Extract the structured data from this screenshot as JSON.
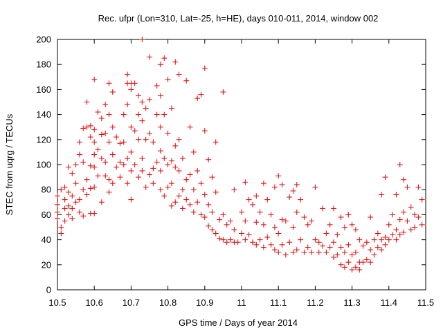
{
  "chart_data": {
    "type": "scatter",
    "title": "Rec. ufpr (Lon=310, Lat=-25, h=HE), days 010-011, 2014, window 002",
    "xlabel": "GPS time / Days of year 2014",
    "ylabel": "STEC from uqrg / TECUs",
    "xlim": [
      10.5,
      11.5
    ],
    "ylim": [
      0,
      200
    ],
    "x_ticks": [
      "10.5",
      "10.6",
      "10.7",
      "10.8",
      "10.9",
      "11",
      "11.1",
      "11.2",
      "11.3",
      "11.4",
      "11.5"
    ],
    "y_ticks": [
      "0",
      "20",
      "40",
      "60",
      "80",
      "100",
      "120",
      "140",
      "160",
      "180",
      "200"
    ],
    "grid": false,
    "legend": "none",
    "marker": "plus",
    "color": "#e00000",
    "points": [
      [
        10.5,
        75
      ],
      [
        10.5,
        68
      ],
      [
        10.5,
        62
      ],
      [
        10.5,
        57
      ],
      [
        10.51,
        80
      ],
      [
        10.51,
        50
      ],
      [
        10.51,
        45
      ],
      [
        10.52,
        82
      ],
      [
        10.52,
        72
      ],
      [
        10.52,
        65
      ],
      [
        10.52,
        55
      ],
      [
        10.53,
        98
      ],
      [
        10.53,
        78
      ],
      [
        10.53,
        67
      ],
      [
        10.53,
        60
      ],
      [
        10.54,
        93
      ],
      [
        10.54,
        75
      ],
      [
        10.54,
        65
      ],
      [
        10.54,
        57
      ],
      [
        10.55,
        100
      ],
      [
        10.55,
        85
      ],
      [
        10.55,
        70
      ],
      [
        10.56,
        118
      ],
      [
        10.56,
        108
      ],
      [
        10.56,
        72
      ],
      [
        10.56,
        62
      ],
      [
        10.57,
        129
      ],
      [
        10.57,
        102
      ],
      [
        10.57,
        80
      ],
      [
        10.57,
        59
      ],
      [
        10.58,
        150
      ],
      [
        10.58,
        130
      ],
      [
        10.58,
        88
      ],
      [
        10.58,
        76
      ],
      [
        10.59,
        131
      ],
      [
        10.59,
        122
      ],
      [
        10.59,
        99
      ],
      [
        10.59,
        81
      ],
      [
        10.59,
        61
      ],
      [
        10.6,
        168
      ],
      [
        10.6,
        128
      ],
      [
        10.6,
        118
      ],
      [
        10.6,
        108
      ],
      [
        10.6,
        98
      ],
      [
        10.6,
        82
      ],
      [
        10.6,
        61
      ],
      [
        10.61,
        142
      ],
      [
        10.61,
        112
      ],
      [
        10.61,
        91
      ],
      [
        10.62,
        137
      ],
      [
        10.62,
        124
      ],
      [
        10.62,
        105
      ],
      [
        10.62,
        70
      ],
      [
        10.63,
        148
      ],
      [
        10.63,
        125
      ],
      [
        10.63,
        102
      ],
      [
        10.63,
        91
      ],
      [
        10.64,
        165
      ],
      [
        10.64,
        140
      ],
      [
        10.64,
        118
      ],
      [
        10.64,
        88
      ],
      [
        10.64,
        78
      ],
      [
        10.65,
        158
      ],
      [
        10.65,
        130
      ],
      [
        10.65,
        108
      ],
      [
        10.65,
        85
      ],
      [
        10.66,
        122
      ],
      [
        10.66,
        98
      ],
      [
        10.67,
        117
      ],
      [
        10.67,
        102
      ],
      [
        10.67,
        90
      ],
      [
        10.68,
        140
      ],
      [
        10.68,
        118
      ],
      [
        10.68,
        100
      ],
      [
        10.69,
        172
      ],
      [
        10.69,
        165
      ],
      [
        10.69,
        148
      ],
      [
        10.69,
        105
      ],
      [
        10.69,
        85
      ],
      [
        10.7,
        165
      ],
      [
        10.7,
        160
      ],
      [
        10.7,
        130
      ],
      [
        10.7,
        110
      ],
      [
        10.7,
        95
      ],
      [
        10.7,
        72
      ],
      [
        10.71,
        165
      ],
      [
        10.71,
        127
      ],
      [
        10.71,
        100
      ],
      [
        10.72,
        155
      ],
      [
        10.72,
        140
      ],
      [
        10.72,
        120
      ],
      [
        10.72,
        90
      ],
      [
        10.73,
        200
      ],
      [
        10.73,
        150
      ],
      [
        10.73,
        135
      ],
      [
        10.73,
        105
      ],
      [
        10.73,
        95
      ],
      [
        10.74,
        145
      ],
      [
        10.74,
        120
      ],
      [
        10.74,
        82
      ],
      [
        10.75,
        186
      ],
      [
        10.75,
        152
      ],
      [
        10.75,
        125
      ],
      [
        10.75,
        92
      ],
      [
        10.76,
        118
      ],
      [
        10.76,
        97
      ],
      [
        10.76,
        85
      ],
      [
        10.77,
        163
      ],
      [
        10.77,
        140
      ],
      [
        10.77,
        102
      ],
      [
        10.78,
        180
      ],
      [
        10.78,
        155
      ],
      [
        10.78,
        130
      ],
      [
        10.78,
        111
      ],
      [
        10.78,
        95
      ],
      [
        10.78,
        80
      ],
      [
        10.79,
        185
      ],
      [
        10.79,
        140
      ],
      [
        10.79,
        105
      ],
      [
        10.79,
        75
      ],
      [
        10.8,
        168
      ],
      [
        10.8,
        125
      ],
      [
        10.8,
        100
      ],
      [
        10.8,
        82
      ],
      [
        10.81,
        145
      ],
      [
        10.81,
        103
      ],
      [
        10.81,
        85
      ],
      [
        10.81,
        67
      ],
      [
        10.82,
        182
      ],
      [
        10.82,
        115
      ],
      [
        10.82,
        98
      ],
      [
        10.82,
        70
      ],
      [
        10.83,
        172
      ],
      [
        10.83,
        120
      ],
      [
        10.83,
        95
      ],
      [
        10.83,
        75
      ],
      [
        10.84,
        105
      ],
      [
        10.84,
        80
      ],
      [
        10.84,
        65
      ],
      [
        10.85,
        167
      ],
      [
        10.85,
        88
      ],
      [
        10.85,
        72
      ],
      [
        10.86,
        130
      ],
      [
        10.86,
        92
      ],
      [
        10.86,
        68
      ],
      [
        10.87,
        110
      ],
      [
        10.87,
        80
      ],
      [
        10.87,
        62
      ],
      [
        10.88,
        153
      ],
      [
        10.88,
        95
      ],
      [
        10.88,
        70
      ],
      [
        10.89,
        156
      ],
      [
        10.89,
        85
      ],
      [
        10.89,
        60
      ],
      [
        10.9,
        177
      ],
      [
        10.9,
        127
      ],
      [
        10.9,
        76
      ],
      [
        10.9,
        58
      ],
      [
        10.91,
        104
      ],
      [
        10.91,
        68
      ],
      [
        10.91,
        51
      ],
      [
        10.92,
        90
      ],
      [
        10.92,
        62
      ],
      [
        10.92,
        48
      ],
      [
        10.93,
        118
      ],
      [
        10.93,
        78
      ],
      [
        10.93,
        45
      ],
      [
        10.94,
        56
      ],
      [
        10.94,
        41
      ],
      [
        10.95,
        158
      ],
      [
        10.95,
        60
      ],
      [
        10.95,
        40
      ],
      [
        10.96,
        52
      ],
      [
        10.96,
        38
      ],
      [
        10.97,
        55
      ],
      [
        10.97,
        40
      ],
      [
        10.98,
        80
      ],
      [
        10.98,
        48
      ],
      [
        10.98,
        38
      ],
      [
        10.99,
        38
      ],
      [
        11.0,
        62
      ],
      [
        11.0,
        45
      ],
      [
        11.01,
        86
      ],
      [
        11.01,
        55
      ],
      [
        11.01,
        40
      ],
      [
        11.02,
        72
      ],
      [
        11.02,
        44
      ],
      [
        11.03,
        68
      ],
      [
        11.03,
        38
      ],
      [
        11.04,
        75
      ],
      [
        11.04,
        54
      ],
      [
        11.04,
        36
      ],
      [
        11.05,
        62
      ],
      [
        11.05,
        40
      ],
      [
        11.06,
        85
      ],
      [
        11.06,
        52
      ],
      [
        11.06,
        34
      ],
      [
        11.07,
        72
      ],
      [
        11.07,
        42
      ],
      [
        11.08,
        60
      ],
      [
        11.08,
        36
      ],
      [
        11.09,
        82
      ],
      [
        11.09,
        50
      ],
      [
        11.09,
        32
      ],
      [
        11.1,
        91
      ],
      [
        11.1,
        45
      ],
      [
        11.1,
        30
      ],
      [
        11.11,
        84
      ],
      [
        11.11,
        56
      ],
      [
        11.11,
        36
      ],
      [
        11.12,
        55
      ],
      [
        11.12,
        28
      ],
      [
        11.13,
        74
      ],
      [
        11.13,
        38
      ],
      [
        11.14,
        79
      ],
      [
        11.14,
        50
      ],
      [
        11.14,
        30
      ],
      [
        11.15,
        84
      ],
      [
        11.15,
        62
      ],
      [
        11.15,
        32
      ],
      [
        11.16,
        72
      ],
      [
        11.16,
        40
      ],
      [
        11.17,
        58
      ],
      [
        11.17,
        30
      ],
      [
        11.18,
        52
      ],
      [
        11.18,
        34
      ],
      [
        11.19,
        55
      ],
      [
        11.19,
        30
      ],
      [
        11.2,
        82
      ],
      [
        11.2,
        40
      ],
      [
        11.21,
        38
      ],
      [
        11.21,
        30
      ],
      [
        11.22,
        65
      ],
      [
        11.22,
        35
      ],
      [
        11.23,
        45
      ],
      [
        11.23,
        30
      ],
      [
        11.24,
        52
      ],
      [
        11.24,
        34
      ],
      [
        11.25,
        65
      ],
      [
        11.25,
        38
      ],
      [
        11.25,
        26
      ],
      [
        11.26,
        44
      ],
      [
        11.26,
        28
      ],
      [
        11.27,
        58
      ],
      [
        11.27,
        34
      ],
      [
        11.27,
        20
      ],
      [
        11.28,
        50
      ],
      [
        11.28,
        30
      ],
      [
        11.28,
        18
      ],
      [
        11.29,
        60
      ],
      [
        11.29,
        36
      ],
      [
        11.29,
        22
      ],
      [
        11.3,
        52
      ],
      [
        11.3,
        28
      ],
      [
        11.3,
        16
      ],
      [
        11.31,
        48
      ],
      [
        11.31,
        30
      ],
      [
        11.31,
        18
      ],
      [
        11.32,
        40
      ],
      [
        11.32,
        22
      ],
      [
        11.32,
        16
      ],
      [
        11.33,
        35
      ],
      [
        11.33,
        22
      ],
      [
        11.34,
        38
      ],
      [
        11.34,
        24
      ],
      [
        11.35,
        58
      ],
      [
        11.35,
        32
      ],
      [
        11.35,
        22
      ],
      [
        11.36,
        40
      ],
      [
        11.36,
        28
      ],
      [
        11.37,
        45
      ],
      [
        11.37,
        34
      ],
      [
        11.38,
        76
      ],
      [
        11.38,
        40
      ],
      [
        11.38,
        32
      ],
      [
        11.39,
        90
      ],
      [
        11.39,
        42
      ],
      [
        11.39,
        36
      ],
      [
        11.4,
        52
      ],
      [
        11.4,
        40
      ],
      [
        11.41,
        60
      ],
      [
        11.41,
        44
      ],
      [
        11.42,
        76
      ],
      [
        11.42,
        48
      ],
      [
        11.42,
        40
      ],
      [
        11.43,
        100
      ],
      [
        11.43,
        56
      ],
      [
        11.43,
        44
      ],
      [
        11.44,
        88
      ],
      [
        11.44,
        62
      ],
      [
        11.44,
        46
      ],
      [
        11.45,
        82
      ],
      [
        11.45,
        55
      ],
      [
        11.46,
        66
      ],
      [
        11.46,
        48
      ],
      [
        11.47,
        60
      ],
      [
        11.47,
        50
      ],
      [
        11.48,
        82
      ],
      [
        11.48,
        58
      ],
      [
        11.49,
        72
      ],
      [
        11.49,
        52
      ]
    ]
  }
}
